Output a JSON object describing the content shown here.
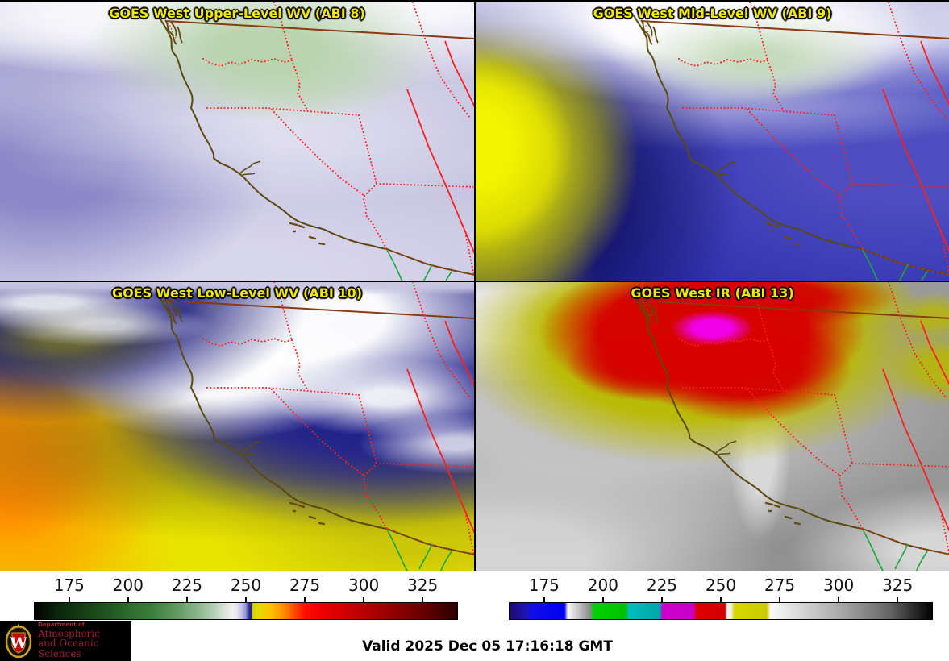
{
  "panels": [
    {
      "title": "GOES West Upper-Level WV (ABI 8)"
    },
    {
      "title": "GOES West Mid-Level WV (ABI 9)"
    },
    {
      "title": "GOES West Low-Level WV (ABI 10)"
    },
    {
      "title": "GOES West IR (ABI 13)"
    }
  ],
  "colorbars": {
    "range": [
      160,
      340
    ],
    "ticks": [
      175,
      200,
      225,
      250,
      275,
      300,
      325
    ],
    "wv_stops": [
      [
        0.0,
        "#000000"
      ],
      [
        0.05,
        "#0b230b"
      ],
      [
        0.12,
        "#164016"
      ],
      [
        0.2,
        "#256325"
      ],
      [
        0.28,
        "#3c7f3c"
      ],
      [
        0.34,
        "#639c63"
      ],
      [
        0.39,
        "#8fb88f"
      ],
      [
        0.43,
        "#bcd3bc"
      ],
      [
        0.455,
        "#e2e9e2"
      ],
      [
        0.468,
        "#f2f2ef"
      ],
      [
        0.478,
        "#e6e6f0"
      ],
      [
        0.49,
        "#c4c4e4"
      ],
      [
        0.5,
        "#9090cf"
      ],
      [
        0.505,
        "#4848ac"
      ],
      [
        0.512,
        "#16167c"
      ],
      [
        0.516,
        "#d2d200"
      ],
      [
        0.53,
        "#e6da00"
      ],
      [
        0.56,
        "#ffc000"
      ],
      [
        0.59,
        "#ff8c00"
      ],
      [
        0.615,
        "#ff4a00"
      ],
      [
        0.64,
        "#ff0f00"
      ],
      [
        0.68,
        "#ed0000"
      ],
      [
        0.74,
        "#cc0000"
      ],
      [
        0.82,
        "#a30000"
      ],
      [
        0.9,
        "#730000"
      ],
      [
        0.96,
        "#470000"
      ],
      [
        1.0,
        "#2a0000"
      ]
    ],
    "ir_stops": [
      [
        0.0,
        "#200a6e"
      ],
      [
        0.04,
        "#1c14b4"
      ],
      [
        0.05,
        "#1010e6"
      ],
      [
        0.13,
        "#0000f0"
      ],
      [
        0.138,
        "#ffffff"
      ],
      [
        0.15,
        "#e0e0e0"
      ],
      [
        0.19,
        "#8c8c8c"
      ],
      [
        0.2,
        "#00d200"
      ],
      [
        0.275,
        "#00c000"
      ],
      [
        0.282,
        "#00bcbc"
      ],
      [
        0.355,
        "#00a8a8"
      ],
      [
        0.362,
        "#cc00cc"
      ],
      [
        0.435,
        "#c800c8"
      ],
      [
        0.442,
        "#e00000"
      ],
      [
        0.51,
        "#d00000"
      ],
      [
        0.515,
        "#f5f5f5"
      ],
      [
        0.525,
        "#f0f0e0"
      ],
      [
        0.532,
        "#d8d800"
      ],
      [
        0.608,
        "#cccc00"
      ],
      [
        0.618,
        "#fafafa"
      ],
      [
        0.7,
        "#d2d2d2"
      ],
      [
        0.8,
        "#a0a0a0"
      ],
      [
        0.9,
        "#646464"
      ],
      [
        1.0,
        "#000000"
      ]
    ]
  },
  "footer": {
    "valid_time": "Valid 2025 Dec 05 17:16:18 GMT",
    "logo": {
      "line1": "Department of",
      "line2": "Atmospheric",
      "line3": "and Oceanic Sciences",
      "crest_letter": "W"
    }
  },
  "colors": {
    "title_yellow": "#f0e800",
    "state_border_red": "#ff1e1e",
    "coast_brown": "#5a4a0e",
    "national_border_brown": "#8a3a10",
    "river_green": "#16a83e",
    "logo_maroon": "#9b2235"
  }
}
